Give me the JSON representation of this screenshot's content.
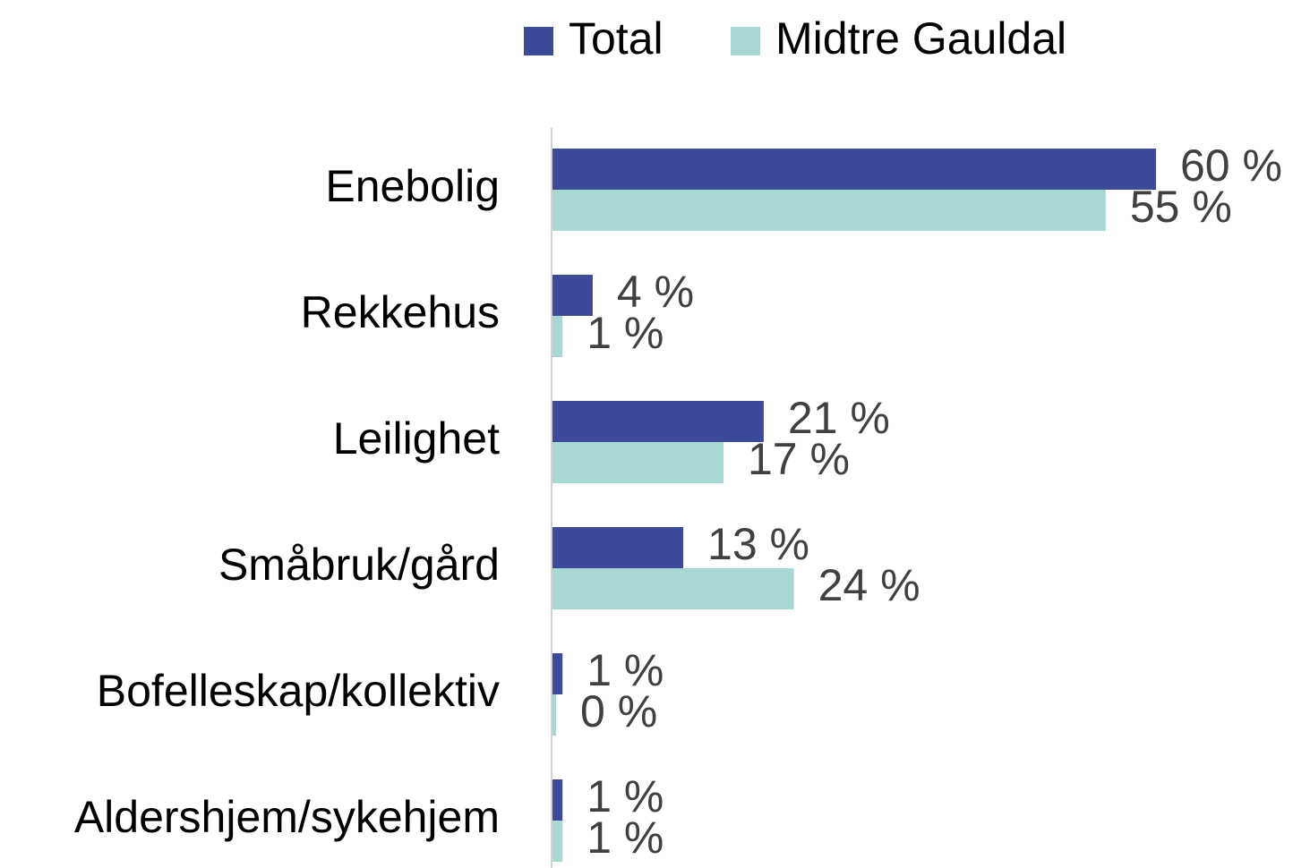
{
  "chart_data": {
    "type": "bar",
    "orientation": "horizontal",
    "categories": [
      "Enebolig",
      "Rekkehus",
      "Leilighet",
      "Småbruk/gård",
      "Bofelleskap/kollektiv",
      "Aldershjem/sykehjem"
    ],
    "series": [
      {
        "name": "Total",
        "color": "#3d4a9a",
        "values": [
          60,
          4,
          21,
          13,
          1,
          1
        ],
        "value_labels": [
          "60 %",
          "4 %",
          "21 %",
          "13 %",
          "1 %",
          "1 %"
        ]
      },
      {
        "name": "Midtre Gauldal",
        "color": "#a8d8d4",
        "values": [
          55,
          1,
          17,
          24,
          0,
          1
        ],
        "value_labels": [
          "55 %",
          "1 %",
          "17 %",
          "24 %",
          "0 %",
          "1 %"
        ]
      }
    ],
    "xlim": [
      0,
      60
    ],
    "legend": "top",
    "grid": false
  }
}
